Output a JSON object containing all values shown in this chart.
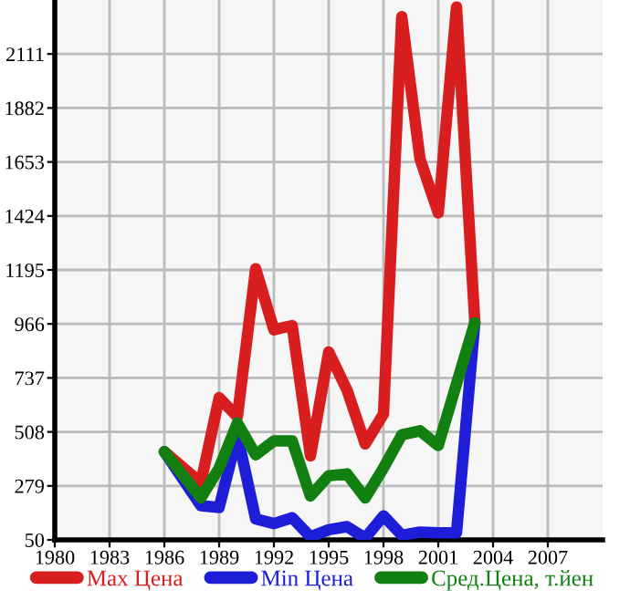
{
  "chart_data": {
    "type": "line",
    "x": [
      1986,
      1988,
      1989,
      1990,
      1991,
      1992,
      1993,
      1994,
      1995,
      1996,
      1997,
      1998,
      1999,
      2000,
      2001,
      2002,
      2003
    ],
    "series": [
      {
        "name": "Max Цена",
        "color": "#d81e1e",
        "values": [
          424,
          292,
          653,
          572,
          1200,
          941,
          959,
          406,
          847,
          686,
          457,
          584,
          2269,
          1666,
          1437,
          2310,
          975
        ]
      },
      {
        "name": "Min Цена",
        "color": "#1e1ed8",
        "values": [
          424,
          195,
          187,
          495,
          139,
          119,
          144,
          63,
          93,
          106,
          58,
          152,
          70,
          83,
          80,
          80,
          971
        ]
      },
      {
        "name": "Сред.Цена, т.йен",
        "color": "#118011",
        "values": [
          424,
          228,
          355,
          546,
          411,
          470,
          470,
          236,
          322,
          330,
          228,
          355,
          495,
          513,
          450,
          712,
          971
        ]
      }
    ],
    "xlim": [
      1980,
      2010
    ],
    "xticks": [
      1980,
      1983,
      1986,
      1989,
      1992,
      1995,
      1998,
      2001,
      2004,
      2007
    ],
    "ylim": [
      50,
      2340
    ],
    "yticks": [
      50,
      279,
      508,
      737,
      966,
      1195,
      1424,
      1653,
      1882,
      2111
    ],
    "grid": true,
    "legend": "bottom",
    "marker": "none",
    "line_style": "solid"
  }
}
